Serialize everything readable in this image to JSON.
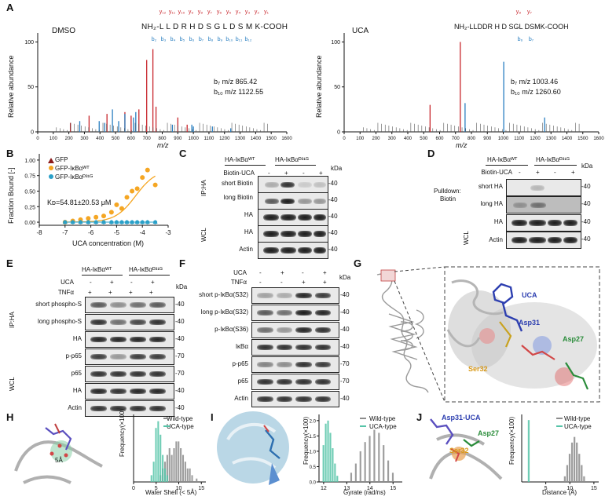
{
  "panels": {
    "A": "A",
    "B": "B",
    "C": "C",
    "D": "D",
    "E": "E",
    "F": "F",
    "G": "G",
    "H": "H",
    "I": "I",
    "J": "J"
  },
  "A_left": {
    "condition": "DMSO",
    "sequence": "NH₂-L L D R H D S G L D S M K-COOH",
    "y_ions": [
      "y₁₂",
      "y₁₁",
      "y₁₀",
      "y₉",
      "y₈",
      "y₇",
      "y₆",
      "y₅",
      "y₄",
      "y₃",
      "y₂",
      "y₁"
    ],
    "b_ions": [
      "b₂",
      "b₃",
      "b₄",
      "b₅",
      "b₆",
      "b₇",
      "b₈",
      "b₉",
      "b₁₀",
      "b₁₁",
      "b₁₂"
    ],
    "ann1": "b₇ m/z 865.42",
    "ann2": "b₁₀ m/z 1122.55",
    "ylabel": "Relative abundance",
    "xlabel": "m/z",
    "xticks": [
      "0",
      "100",
      "200",
      "300",
      "400",
      "500",
      "600",
      "700",
      "800",
      "900",
      "1000",
      "1100",
      "1200",
      "1300",
      "1400",
      "1500",
      "1600"
    ],
    "yticks": [
      "0",
      "50",
      "100"
    ]
  },
  "A_right": {
    "condition": "UCA",
    "sequence": "NH₂-LLDDR H D SGL DSMK-COOH",
    "y_ions": [
      "y₈",
      "y₇"
    ],
    "b_ions": [
      "b₆",
      "b₇"
    ],
    "ann1": "b₇ m/z 1003.46",
    "ann2": "b₁₀ m/z 1260.60",
    "ylabel": "Relative abundance",
    "xlabel": "m/z",
    "xticks": [
      "0",
      "100",
      "200",
      "300",
      "400",
      "500",
      "600",
      "700",
      "800",
      "900",
      "1000",
      "1100",
      "1200",
      "1300",
      "1400",
      "1500",
      "1600"
    ],
    "yticks": [
      "0",
      "50",
      "100"
    ]
  },
  "chart_data": [
    {
      "type": "bar",
      "title": "",
      "xlabel": "m/z",
      "ylabel": "Relative abundance",
      "xlim": [
        0,
        1600
      ],
      "ylim": [
        0,
        110
      ],
      "series": [
        {
          "name": "y ions",
          "x": [
            210,
            330,
            445,
            560,
            600,
            650,
            700,
            740,
            760,
            900,
            960
          ],
          "values": [
            10,
            18,
            20,
            22,
            18,
            25,
            80,
            92,
            28,
            16,
            8
          ]
        },
        {
          "name": "b ions",
          "x": [
            270,
            395,
            430,
            480,
            520,
            560,
            615,
            630,
            865,
            990,
            1000,
            1122,
            1240
          ],
          "values": [
            12,
            12,
            10,
            25,
            12,
            20,
            16,
            22,
            8,
            8,
            6,
            6,
            4
          ]
        }
      ]
    },
    {
      "type": "bar",
      "title": "",
      "xlabel": "m/z",
      "ylabel": "Relative abundance",
      "xlim": [
        0,
        1600
      ],
      "ylim": [
        0,
        110
      ],
      "series": [
        {
          "name": "y ions",
          "x": [
            540,
            730
          ],
          "values": [
            30,
            100
          ]
        },
        {
          "name": "b ions",
          "x": [
            760,
            1003,
            1260
          ],
          "values": [
            32,
            78,
            16
          ]
        }
      ]
    },
    {
      "type": "scatter",
      "title": "",
      "xlabel": "UCA concentration (M)",
      "ylabel": "Fraction Bound [-]",
      "xlim": [
        -8,
        -3
      ],
      "ylim": [
        -0.05,
        1.1
      ],
      "xticks": [
        "-8",
        "-7",
        "-6",
        "-5",
        "-4",
        "-3"
      ],
      "yticks": [
        "0.00",
        "0.25",
        "0.50",
        "0.75",
        "1.00"
      ],
      "annotation": "Kᴅ=54.81±20.53 μM",
      "series": [
        {
          "name": "GFP",
          "color": "#8b1a1a",
          "x": [],
          "y": []
        },
        {
          "name": "GFP-IκBαᵂᵀ",
          "color": "#f5a623",
          "x": [
            -7.0,
            -6.7,
            -6.4,
            -6.1,
            -5.8,
            -5.5,
            -5.2,
            -5.0,
            -4.8,
            -4.6,
            -4.4,
            -4.2,
            -4.0,
            -3.8,
            -3.5
          ],
          "y": [
            0.0,
            0.02,
            0.04,
            0.06,
            0.08,
            0.1,
            0.16,
            0.28,
            0.22,
            0.4,
            0.5,
            0.54,
            0.72,
            0.84,
            0.6
          ]
        },
        {
          "name": "GFP-IκBαᴰ³¹ᴳ",
          "color": "#2aa0c8",
          "x": [
            -7.0,
            -6.7,
            -6.4,
            -6.1,
            -5.8,
            -5.5,
            -5.2,
            -5.0,
            -4.8,
            -4.6,
            -4.4,
            -4.2,
            -4.0,
            -3.8,
            -3.5
          ],
          "y": [
            0.0,
            0.0,
            0.0,
            0.0,
            0.0,
            0.0,
            0.0,
            0.0,
            0.0,
            0.0,
            0.0,
            0.0,
            0.0,
            0.0,
            0.0
          ]
        }
      ]
    },
    {
      "type": "bar",
      "title": "",
      "xlabel": "Water Shell (< 5Å)",
      "ylabel": "Frequency(×100)",
      "xlim": [
        0,
        16
      ],
      "ylim": [
        0,
        10
      ],
      "xticks": [
        "0",
        "5",
        "10",
        "15"
      ],
      "series": [
        {
          "name": "Wild-type",
          "color": "#8c8c8c",
          "x": [
            6,
            6.5,
            7,
            7.5,
            8,
            8.5,
            9,
            9.5,
            10,
            10.5,
            11,
            11.5,
            12,
            12.5,
            13,
            14
          ],
          "values": [
            1,
            2,
            3,
            4,
            5,
            4,
            5,
            6,
            6,
            5,
            4,
            3,
            2,
            2,
            1,
            0.5
          ]
        },
        {
          "name": "UCA-type",
          "color": "#56c4a8",
          "x": [
            4,
            4.5,
            5,
            5.5,
            6,
            6.5,
            7,
            7.5
          ],
          "values": [
            1,
            3,
            8,
            9,
            7,
            4,
            2,
            1
          ]
        }
      ]
    },
    {
      "type": "bar",
      "title": "",
      "xlabel": "Gyrate (rad/ns)",
      "ylabel": "Frequency(×100)",
      "xlim": [
        11.8,
        15.4
      ],
      "ylim": [
        0,
        2.2
      ],
      "xticks": [
        "12",
        "13",
        "14",
        "15"
      ],
      "yticks": [
        "0.0",
        "0.5",
        "1.0",
        "1.5",
        "2.0"
      ],
      "series": [
        {
          "name": "Wild-type",
          "color": "#8c8c8c",
          "x": [
            13.2,
            13.4,
            13.6,
            13.8,
            14.0,
            14.2,
            14.4,
            14.6,
            14.8,
            15.0
          ],
          "values": [
            0.3,
            0.6,
            1.0,
            1.3,
            1.5,
            1.7,
            1.6,
            1.2,
            0.7,
            0.3
          ]
        },
        {
          "name": "UCA-type",
          "color": "#56c4a8",
          "x": [
            12.0,
            12.1,
            12.2,
            12.3,
            12.4,
            12.5,
            12.6
          ],
          "values": [
            1.2,
            1.9,
            2.0,
            1.6,
            1.1,
            0.6,
            0.2
          ]
        }
      ]
    },
    {
      "type": "bar",
      "title": "",
      "xlabel": "Distance (Å)",
      "ylabel": "Frequency(×100)",
      "xlim": [
        0,
        16
      ],
      "ylim": [
        0,
        12
      ],
      "xticks": [
        "5",
        "10",
        "15"
      ],
      "series": [
        {
          "name": "Wild-type",
          "color": "#8c8c8c",
          "x": [
            9,
            9.5,
            10,
            10.5,
            11,
            11.5,
            12,
            12.5,
            13
          ],
          "values": [
            1,
            3,
            5,
            7,
            8,
            7,
            5,
            3,
            1
          ]
        },
        {
          "name": "UCA-type",
          "color": "#56c4a8",
          "x": [
            1.5
          ],
          "values": [
            11
          ]
        }
      ]
    }
  ],
  "B": {
    "legend": [
      "GFP",
      "GFP-IκBαᵂᵀ",
      "GFP-IκBαᴰ³¹ᴳ"
    ],
    "kd": "Kᴅ=54.81±20.53 μM",
    "ylabel": "Fraction Bound [-]",
    "xlabel": "UCA concentration (M)",
    "xticks": [
      "-8",
      "-7",
      "-6",
      "-5",
      "-4",
      "-3"
    ],
    "yticks": [
      "0.00",
      "0.25",
      "0.50",
      "0.75",
      "1.00"
    ]
  },
  "C": {
    "wt": "HA-IκBαᵂᵀ",
    "mut": "HA-IκBαᴰ³¹ᴳ",
    "treat": "Biotin-UCA",
    "signs": [
      "-",
      "+",
      "-",
      "+"
    ],
    "kda": "kDa",
    "rows": [
      "short Biotin",
      "long Biotin",
      "HA",
      "HA",
      "Actin"
    ],
    "mw": [
      "-40",
      "-40",
      "-40",
      "-40",
      "-40"
    ],
    "group1": "IP:HA",
    "group2": "WCL"
  },
  "D": {
    "wt": "HA-IκBαᵂᵀ",
    "mut": "HA-IκBαᴰ³¹ᴳ",
    "treat": "Biotin-UCA",
    "signs": [
      "-",
      "+",
      "-",
      "+"
    ],
    "kda": "kDa",
    "rows": [
      "short HA",
      "long HA",
      "HA",
      "Actin"
    ],
    "mw": [
      "-40",
      "-40",
      "-40",
      "-40"
    ],
    "group1a": "Pulldown:",
    "group1b": "Biotin",
    "group2": "WCL"
  },
  "E": {
    "wt": "HA-IκBαᵂᵀ",
    "mut": "HA-IκBαᴰ³¹ᴳ",
    "treat1": "UCA",
    "treat2": "TNFα",
    "signs1": [
      "-",
      "+",
      "-",
      "+"
    ],
    "signs2": [
      "+",
      "+",
      "+",
      "+"
    ],
    "kda": "kDa",
    "rows": [
      "short phospho-S",
      "long phospho-S",
      "HA",
      "p-p65",
      "p65",
      "HA",
      "Actin"
    ],
    "mw": [
      "-40",
      "-40",
      "-40",
      "-70",
      "-70",
      "-40",
      "-40"
    ],
    "group1": "IP:HA",
    "group2": "WCL"
  },
  "F": {
    "treat1": "UCA",
    "treat2": "TNFα",
    "signs1": [
      "-",
      "+",
      "-",
      "+"
    ],
    "signs2": [
      "-",
      "-",
      "+",
      "+"
    ],
    "kda": "kDa",
    "rows": [
      "short p-IκBα(S32)",
      "long p-IκBα(S32)",
      "p-IκBα(S36)",
      "IκBα",
      "p-p65",
      "p65",
      "Actin"
    ],
    "mw": [
      "-40",
      "-40",
      "-40",
      "-40",
      "-70",
      "-70",
      "-40"
    ]
  },
  "G": {
    "labels": [
      "UCA",
      "Asp31",
      "Asp27",
      "Ser32"
    ]
  },
  "H": {
    "mol_label": "5Å",
    "legend": [
      "Wild-type",
      "UCA-type"
    ],
    "ylabel": "Frequency(×100)",
    "xlabel": "Water Shell (< 5Å)",
    "xticks": [
      "0",
      "5",
      "10",
      "15"
    ]
  },
  "I": {
    "legend": [
      "Wild-type",
      "UCA-type"
    ],
    "ylabel": "Frequency(×100)",
    "xlabel": "Gyrate (rad/ns)",
    "xticks": [
      "12",
      "13",
      "14",
      "15"
    ],
    "yticks": [
      "0.0",
      "0.5",
      "1.0",
      "1.5",
      "2.0"
    ]
  },
  "J": {
    "mol_labels": [
      "Asp31-UCA",
      "Asp27",
      "Ser32"
    ],
    "legend": [
      "Wild-type",
      "UCA-type"
    ],
    "ylabel": "Frequency(×100)",
    "xlabel": "Distance (Å)",
    "xticks": [
      "5",
      "10",
      "15"
    ]
  },
  "colors": {
    "y_ion": "#c8262c",
    "b_ion": "#2a7fc1",
    "wt_hist": "#8c8c8c",
    "uca_hist": "#56c4a8",
    "kd_fit": "#f5a623",
    "gfp": "#8b1a1a",
    "mut": "#2aa0c8"
  }
}
